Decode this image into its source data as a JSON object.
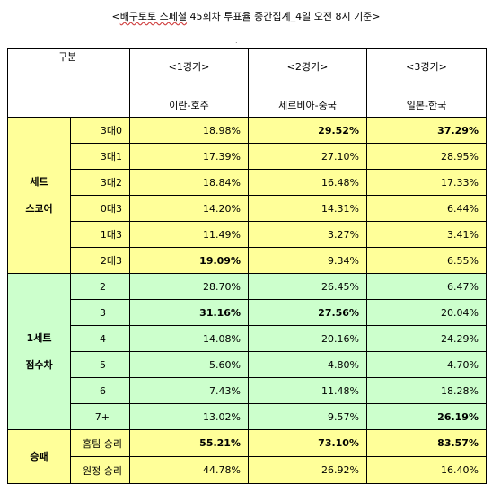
{
  "title_prefix": "<",
  "title_wavy": "배구토토 스페셜",
  "title_rest": " 45회차 투표율 중간집계_4일 오전 8시 기준>",
  "header": {
    "gubun": "구분",
    "games": [
      {
        "label": "<1경기>",
        "match": "이란-호주"
      },
      {
        "label": "<2경기>",
        "match": "세르비아-중국"
      },
      {
        "label": "<3경기>",
        "match": "일본-한국"
      }
    ]
  },
  "groups": {
    "set_score": [
      "세트",
      "스코어"
    ],
    "point_diff": [
      "1세트",
      "점수차"
    ],
    "result": "승패"
  },
  "rows": [
    {
      "label": "3대0",
      "values": [
        "18.98%",
        "29.52%",
        "37.29%"
      ],
      "bold": [
        false,
        true,
        true
      ]
    },
    {
      "label": "3대1",
      "values": [
        "17.39%",
        "27.10%",
        "28.95%"
      ],
      "bold": [
        false,
        false,
        false
      ]
    },
    {
      "label": "3대2",
      "values": [
        "18.84%",
        "16.48%",
        "17.33%"
      ],
      "bold": [
        false,
        false,
        false
      ]
    },
    {
      "label": "0대3",
      "values": [
        "14.20%",
        "14.31%",
        "6.44%"
      ],
      "bold": [
        false,
        false,
        false
      ]
    },
    {
      "label": "1대3",
      "values": [
        "11.49%",
        "3.27%",
        "3.41%"
      ],
      "bold": [
        false,
        false,
        false
      ]
    },
    {
      "label": "2대3",
      "values": [
        "19.09%",
        "9.34%",
        "6.55%"
      ],
      "bold": [
        true,
        false,
        false
      ]
    },
    {
      "label": "2",
      "values": [
        "28.70%",
        "26.45%",
        "6.47%"
      ],
      "bold": [
        false,
        false,
        false
      ]
    },
    {
      "label": "3",
      "values": [
        "31.16%",
        "27.56%",
        "20.04%"
      ],
      "bold": [
        true,
        true,
        false
      ]
    },
    {
      "label": "4",
      "values": [
        "14.08%",
        "20.16%",
        "24.29%"
      ],
      "bold": [
        false,
        false,
        false
      ]
    },
    {
      "label": "5",
      "values": [
        "5.60%",
        "4.80%",
        "4.70%"
      ],
      "bold": [
        false,
        false,
        false
      ]
    },
    {
      "label": "6",
      "values": [
        "7.43%",
        "11.48%",
        "18.28%"
      ],
      "bold": [
        false,
        false,
        false
      ]
    },
    {
      "label": "7+",
      "values": [
        "13.02%",
        "9.57%",
        "26.19%"
      ],
      "bold": [
        false,
        false,
        true
      ]
    },
    {
      "label": "홈팀 승리",
      "values": [
        "55.21%",
        "73.10%",
        "83.57%"
      ],
      "bold": [
        true,
        true,
        true
      ]
    },
    {
      "label": "원정 승리",
      "values": [
        "44.78%",
        "26.92%",
        "16.40%"
      ],
      "bold": [
        false,
        false,
        false
      ]
    }
  ]
}
